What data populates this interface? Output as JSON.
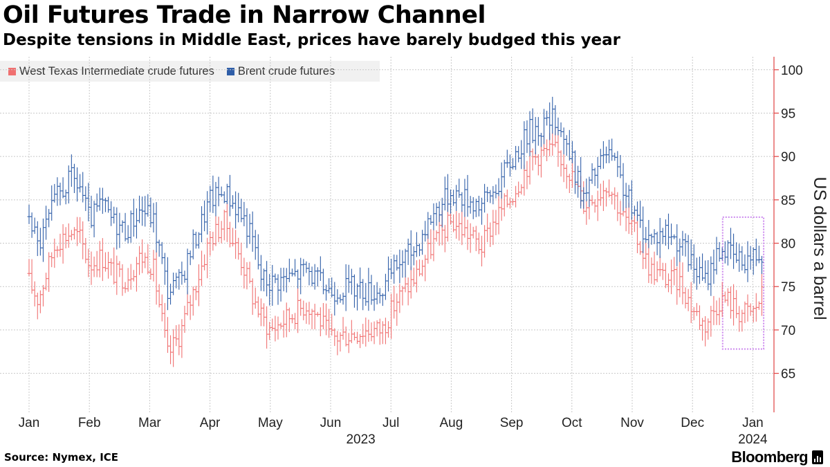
{
  "header": {
    "title": "Oil Futures Trade in Narrow Channel",
    "subtitle": "Despite tensions in Middle East, prices have barely budged this year"
  },
  "footer": {
    "source": "Source: Nymex, ICE",
    "brand": "Bloomberg"
  },
  "chart_data": {
    "type": "bar",
    "subtype": "ohlc",
    "ylabel": "US dollars a barrel",
    "ylim": [
      60.5,
      101.5
    ],
    "yticks": [
      65,
      70,
      75,
      80,
      85,
      90,
      95,
      100
    ],
    "xlim_months": [
      0,
      12.3
    ],
    "grid": true,
    "legend_position": "top-left",
    "month_labels": [
      "Jan",
      "Feb",
      "Mar",
      "Apr",
      "May",
      "Jun",
      "Jul",
      "Aug",
      "Sep",
      "Oct",
      "Nov",
      "Dec",
      "Jan"
    ],
    "year_labels": [
      {
        "label": "2023",
        "month_index": 5.5
      },
      {
        "label": "2024",
        "month_index": 12
      }
    ],
    "highlight": {
      "x_start_month": 11.5,
      "x_end_month": 12.18,
      "y_low": 67.8,
      "y_high": 83
    },
    "series": [
      {
        "name": "West Texas Intermediate crude futures",
        "color": "#f07070",
        "anchors": [
          [
            0,
            75.5
          ],
          [
            0.15,
            73.5
          ],
          [
            0.45,
            80.2
          ],
          [
            0.7,
            81.3
          ],
          [
            0.85,
            80.5
          ],
          [
            1.0,
            77.5
          ],
          [
            1.2,
            78.5
          ],
          [
            1.4,
            76.5
          ],
          [
            1.6,
            76.0
          ],
          [
            1.85,
            78.5
          ],
          [
            2.05,
            77.5
          ],
          [
            2.3,
            67.0
          ],
          [
            2.5,
            69.5
          ],
          [
            2.75,
            75.0
          ],
          [
            3.0,
            80.5
          ],
          [
            3.25,
            82.5
          ],
          [
            3.55,
            77.5
          ],
          [
            3.7,
            74.0
          ],
          [
            3.85,
            71.5
          ],
          [
            4.0,
            70.0
          ],
          [
            4.3,
            71.5
          ],
          [
            4.6,
            73.0
          ],
          [
            4.8,
            71.5
          ],
          [
            5.0,
            69.0
          ],
          [
            5.3,
            69.5
          ],
          [
            5.6,
            70.0
          ],
          [
            5.85,
            70.0
          ],
          [
            6.1,
            73.5
          ],
          [
            6.4,
            76.0
          ],
          [
            6.7,
            80.0
          ],
          [
            7.0,
            82.5
          ],
          [
            7.3,
            81.0
          ],
          [
            7.5,
            79.5
          ],
          [
            7.7,
            82.5
          ],
          [
            8.0,
            85.5
          ],
          [
            8.3,
            89.5
          ],
          [
            8.5,
            90.5
          ],
          [
            8.75,
            90.5
          ],
          [
            8.95,
            88.5
          ],
          [
            9.2,
            84.5
          ],
          [
            9.4,
            85.5
          ],
          [
            9.6,
            87.0
          ],
          [
            9.85,
            83.0
          ],
          [
            10.05,
            81.0
          ],
          [
            10.3,
            77.0
          ],
          [
            10.55,
            76.0
          ],
          [
            10.8,
            75.5
          ],
          [
            11.0,
            72.5
          ],
          [
            11.2,
            70.5
          ],
          [
            11.45,
            73.5
          ],
          [
            11.6,
            73.5
          ],
          [
            11.75,
            72.0
          ],
          [
            12.0,
            72.0
          ],
          [
            12.15,
            74.0
          ]
        ]
      },
      {
        "name": "Brent crude futures",
        "color": "#2f5ea8",
        "anchors": [
          [
            0,
            83.5
          ],
          [
            0.15,
            79.5
          ],
          [
            0.45,
            85.2
          ],
          [
            0.7,
            87.5
          ],
          [
            0.85,
            86.5
          ],
          [
            1.0,
            82.5
          ],
          [
            1.2,
            84.5
          ],
          [
            1.4,
            82.5
          ],
          [
            1.6,
            81.5
          ],
          [
            1.85,
            84.0
          ],
          [
            2.05,
            83.0
          ],
          [
            2.3,
            74.5
          ],
          [
            2.5,
            75.5
          ],
          [
            2.75,
            80.5
          ],
          [
            3.0,
            85.0
          ],
          [
            3.25,
            86.0
          ],
          [
            3.55,
            83.0
          ],
          [
            3.7,
            80.5
          ],
          [
            3.85,
            76.0
          ],
          [
            4.0,
            75.5
          ],
          [
            4.3,
            76.0
          ],
          [
            4.6,
            77.0
          ],
          [
            4.8,
            75.5
          ],
          [
            5.0,
            74.5
          ],
          [
            5.3,
            75.0
          ],
          [
            5.6,
            74.5
          ],
          [
            5.85,
            74.5
          ],
          [
            6.1,
            77.5
          ],
          [
            6.4,
            79.5
          ],
          [
            6.7,
            83.5
          ],
          [
            7.0,
            86.0
          ],
          [
            7.3,
            85.0
          ],
          [
            7.5,
            84.5
          ],
          [
            7.7,
            86.0
          ],
          [
            8.0,
            89.5
          ],
          [
            8.3,
            93.0
          ],
          [
            8.5,
            93.5
          ],
          [
            8.75,
            94.5
          ],
          [
            8.95,
            90.5
          ],
          [
            9.2,
            85.0
          ],
          [
            9.4,
            88.5
          ],
          [
            9.6,
            90.5
          ],
          [
            9.85,
            86.5
          ],
          [
            10.05,
            83.0
          ],
          [
            10.3,
            80.5
          ],
          [
            10.55,
            81.5
          ],
          [
            10.8,
            80.0
          ],
          [
            11.0,
            77.5
          ],
          [
            11.2,
            75.5
          ],
          [
            11.45,
            79.5
          ],
          [
            11.6,
            79.0
          ],
          [
            11.75,
            78.0
          ],
          [
            12.0,
            78.5
          ],
          [
            12.15,
            79.0
          ]
        ]
      }
    ]
  }
}
